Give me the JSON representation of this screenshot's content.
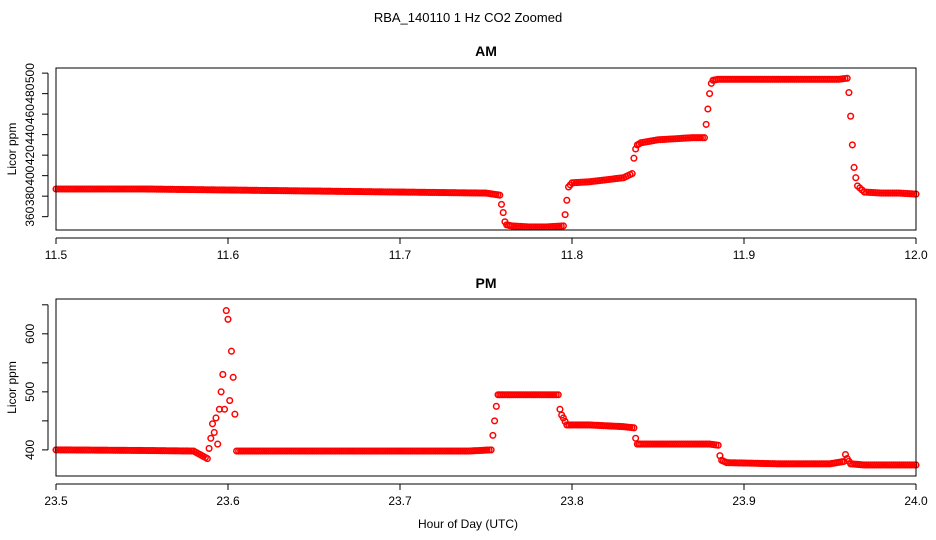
{
  "figure": {
    "title": "RBA_140110  1 Hz CO2 Zoomed",
    "xlabel": "Hour of Day (UTC)"
  },
  "colors": {
    "points": "#ff0000",
    "axis": "#000000"
  },
  "chart_data": [
    {
      "type": "scatter",
      "title": "AM",
      "xlabel": "",
      "ylabel": "Licor ppm",
      "xlim": [
        11.5,
        12.0
      ],
      "ylim": [
        347,
        505
      ],
      "xticks": [
        11.5,
        11.6,
        11.7,
        11.8,
        11.9,
        12.0
      ],
      "xtick_labels": [
        "11.5",
        "11.6",
        "11.7",
        "11.8",
        "11.9",
        "12.0"
      ],
      "yticks": [
        360,
        380,
        400,
        420,
        440,
        460,
        480,
        500
      ],
      "ytick_labels": [
        "360",
        "",
        "400",
        "",
        "440",
        "",
        "480",
        ""
      ],
      "ytick_labels_rotated": [
        "380",
        "420",
        "460",
        "500"
      ],
      "grid": false,
      "series": [
        {
          "marker": "open-circle",
          "x": [
            11.5,
            11.55,
            11.6,
            11.65,
            11.7,
            11.75,
            11.758,
            11.759,
            11.76,
            11.761,
            11.762,
            11.765,
            11.775,
            11.785,
            11.795,
            11.796,
            11.797,
            11.798,
            11.8,
            11.81,
            11.82,
            11.83,
            11.835,
            11.836,
            11.837,
            11.838,
            11.84,
            11.85,
            11.86,
            11.87,
            11.877,
            11.878,
            11.879,
            11.88,
            11.881,
            11.882,
            11.885,
            11.9,
            11.92,
            11.94,
            11.955,
            11.96,
            11.961,
            11.962,
            11.963,
            11.964,
            11.965,
            11.966,
            11.97,
            11.98,
            11.99,
            12.0
          ],
          "y": [
            387,
            387,
            386,
            385,
            384,
            383,
            381,
            372,
            364,
            355,
            352,
            351,
            350,
            350,
            351,
            362,
            376,
            389,
            393,
            394,
            396,
            398,
            402,
            417,
            426,
            430,
            432,
            435,
            436,
            437,
            437,
            450,
            465,
            480,
            490,
            493,
            494,
            494,
            494,
            494,
            494,
            495,
            481,
            458,
            430,
            408,
            398,
            390,
            384,
            383,
            383,
            382
          ]
        }
      ]
    },
    {
      "type": "scatter",
      "title": "PM",
      "xlabel": "Hour of Day (UTC)",
      "ylabel": "Licor ppm",
      "xlim": [
        23.5,
        24.0
      ],
      "ylim": [
        355,
        660
      ],
      "xticks": [
        23.5,
        23.6,
        23.7,
        23.8,
        23.9,
        24.0
      ],
      "xtick_labels": [
        "23.5",
        "23.6",
        "23.7",
        "23.8",
        "23.9",
        "24.0"
      ],
      "yticks": [
        400,
        450,
        500,
        550,
        600,
        650
      ],
      "ytick_labels": [
        "400",
        "",
        "500",
        "",
        "600",
        ""
      ],
      "grid": false,
      "series": [
        {
          "marker": "open-circle",
          "x": [
            23.5,
            23.55,
            23.58,
            23.588,
            23.59,
            23.591,
            23.592,
            23.593,
            23.594,
            23.595,
            23.596,
            23.597,
            23.598,
            23.599,
            23.6,
            23.601,
            23.602,
            23.603,
            23.605,
            23.62,
            23.66,
            23.7,
            23.74,
            23.753,
            23.754,
            23.755,
            23.756,
            23.757,
            23.76,
            23.78,
            23.792,
            23.793,
            23.794,
            23.795,
            23.797,
            23.81,
            23.83,
            23.836,
            23.837,
            23.838,
            23.84,
            23.86,
            23.88,
            23.885,
            23.886,
            23.887,
            23.89,
            23.92,
            23.95,
            23.958,
            23.959,
            23.96,
            23.962,
            23.97,
            24.0
          ],
          "y": [
            400,
            399,
            398,
            385,
            420,
            445,
            430,
            455,
            410,
            470,
            500,
            530,
            470,
            640,
            625,
            485,
            570,
            525,
            398,
            398,
            398,
            398,
            398,
            400,
            425,
            450,
            475,
            495,
            495,
            495,
            495,
            470,
            460,
            455,
            443,
            443,
            440,
            438,
            420,
            410,
            410,
            410,
            410,
            408,
            390,
            382,
            378,
            376,
            376,
            380,
            392,
            385,
            376,
            374,
            374
          ]
        }
      ]
    }
  ]
}
